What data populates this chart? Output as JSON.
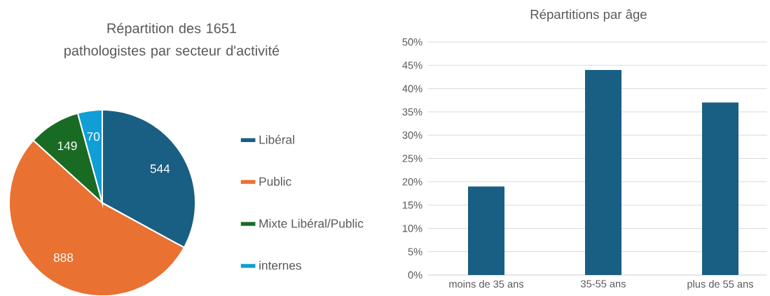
{
  "chart_data": [
    {
      "type": "pie",
      "title": "Répartition des 1651 pathologistes par secteur d'activité",
      "categories": [
        "Libéral",
        "Public",
        "Mixte Libéral/Public",
        "internes"
      ],
      "values": [
        544,
        888,
        149,
        70
      ],
      "colors": [
        "#195e83",
        "#e97132",
        "#196b24",
        "#0f9ed5"
      ],
      "data_labels": true,
      "legend": "right"
    },
    {
      "type": "bar",
      "title": "Répartitions par âge",
      "categories": [
        "moins de 35 ans",
        "35-55 ans",
        "plus de 55 ans"
      ],
      "values": [
        19,
        44,
        37
      ],
      "color": "#195e83",
      "ylim": [
        0,
        50
      ],
      "yticks": [
        {
          "value": 0,
          "label": "0%"
        },
        {
          "value": 5,
          "label": "5%"
        },
        {
          "value": 10,
          "label": "10%"
        },
        {
          "value": 15,
          "label": "15%"
        },
        {
          "value": 20,
          "label": "20%"
        },
        {
          "value": 25,
          "label": "25%"
        },
        {
          "value": 30,
          "label": "30%"
        },
        {
          "value": 35,
          "label": "35%"
        },
        {
          "value": 40,
          "label": "40%"
        },
        {
          "value": 45,
          "label": "45%"
        },
        {
          "value": 50,
          "label": "50%"
        }
      ],
      "grid": "y"
    }
  ]
}
